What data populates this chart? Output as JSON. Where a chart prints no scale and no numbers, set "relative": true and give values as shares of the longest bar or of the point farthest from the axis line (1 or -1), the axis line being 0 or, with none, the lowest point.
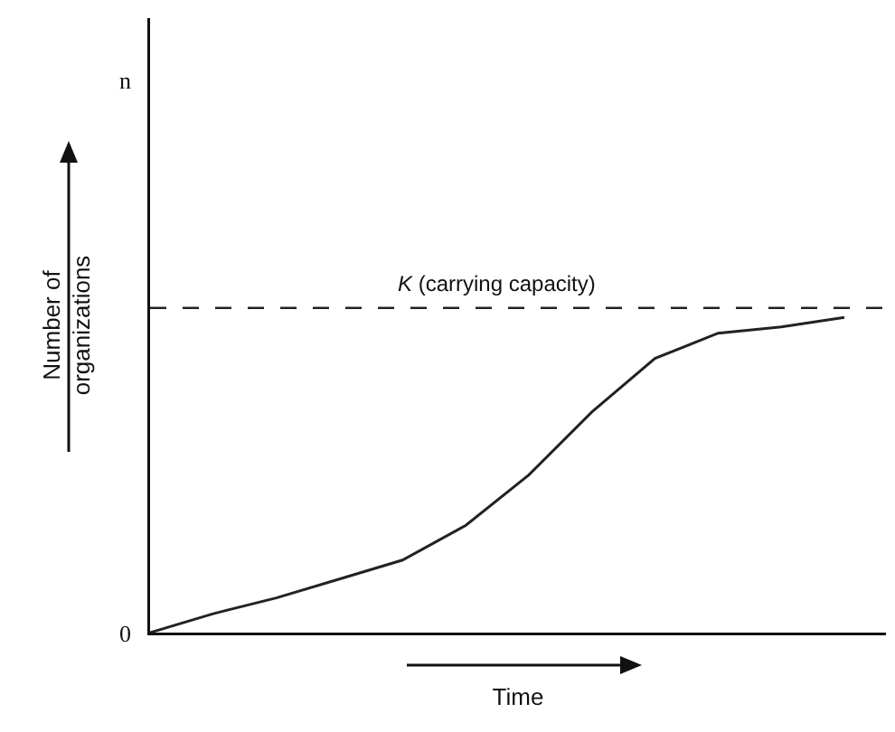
{
  "chart_data": {
    "type": "line",
    "relative": true,
    "xlabel": "Time",
    "ylabel": "Number of organizations",
    "categories": [
      null,
      null,
      null,
      null,
      null,
      null,
      null,
      null,
      null,
      null,
      null,
      null
    ],
    "series": [
      {
        "color": "#222222",
        "values": [
          0,
          0.06,
          0.11,
          0.17,
          0.23,
          0.34,
          0.5,
          0.7,
          0.87,
          0.95,
          0.97,
          1
        ]
      }
    ],
    "ref_lines": [
      {
        "axis": "y",
        "value": 1.03,
        "label": "K (carrying capacity)",
        "line_style": "dashed",
        "color": "#222222"
      }
    ],
    "annotations": [
      "n",
      "0"
    ],
    "marker": "none",
    "line_style": "solid"
  }
}
